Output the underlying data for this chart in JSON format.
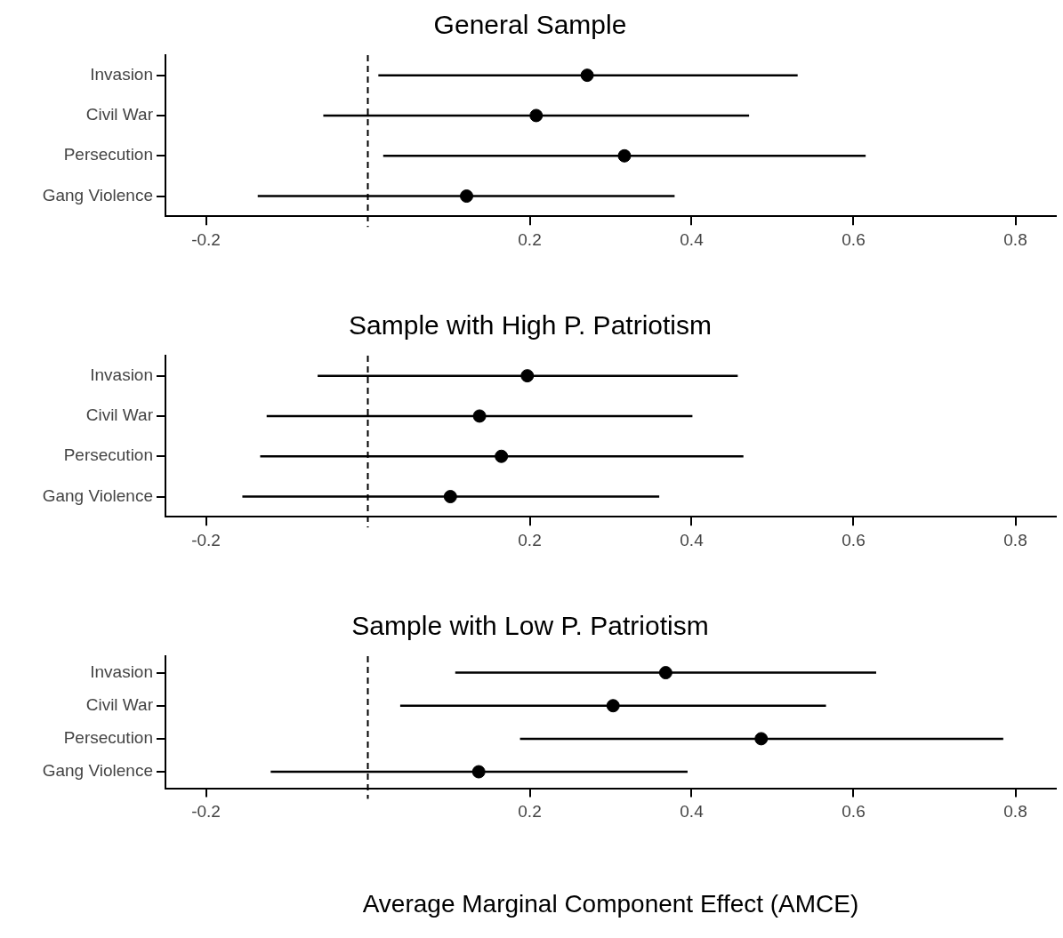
{
  "chart_data": [
    {
      "type": "scatter",
      "orientation": "horizontal",
      "title": "General Sample",
      "categories": [
        "Invasion",
        "Civil War",
        "Persecution",
        "Gang Violence"
      ],
      "values": [
        0.271,
        0.208,
        0.317,
        0.122
      ],
      "errors": [
        [
          0.013,
          0.531
        ],
        [
          -0.055,
          0.471
        ],
        [
          0.019,
          0.615
        ],
        [
          -0.136,
          0.379
        ]
      ],
      "color": "#000000",
      "marker": "circle",
      "xlim": [
        -0.25,
        0.85
      ],
      "xticks": [
        -0.2,
        0.2,
        0.4,
        0.6,
        0.8
      ],
      "ref_lines": [
        {
          "axis": "x",
          "value": 0,
          "line_style": "dashed",
          "color": "#000000"
        }
      ],
      "grid": false,
      "legend": false
    },
    {
      "type": "scatter",
      "orientation": "horizontal",
      "title": "Sample with High P. Patriotism",
      "categories": [
        "Invasion",
        "Civil War",
        "Persecution",
        "Gang Violence"
      ],
      "values": [
        0.197,
        0.138,
        0.165,
        0.102
      ],
      "errors": [
        [
          -0.062,
          0.457
        ],
        [
          -0.125,
          0.401
        ],
        [
          -0.133,
          0.464
        ],
        [
          -0.155,
          0.36
        ]
      ],
      "color": "#000000",
      "marker": "circle",
      "xlim": [
        -0.25,
        0.85
      ],
      "xticks": [
        -0.2,
        0.2,
        0.4,
        0.6,
        0.8
      ],
      "ref_lines": [
        {
          "axis": "x",
          "value": 0,
          "line_style": "dashed",
          "color": "#000000"
        }
      ],
      "grid": false,
      "legend": false
    },
    {
      "type": "scatter",
      "orientation": "horizontal",
      "title": "Sample with Low P. Patriotism",
      "xlabel": "Average Marginal Component Effect (AMCE)",
      "categories": [
        "Invasion",
        "Civil War",
        "Persecution",
        "Gang Violence"
      ],
      "values": [
        0.368,
        0.303,
        0.486,
        0.137
      ],
      "errors": [
        [
          0.108,
          0.628
        ],
        [
          0.04,
          0.566
        ],
        [
          0.188,
          0.785
        ],
        [
          -0.12,
          0.395
        ]
      ],
      "color": "#000000",
      "marker": "circle",
      "xlim": [
        -0.25,
        0.85
      ],
      "xticks": [
        -0.2,
        0.2,
        0.4,
        0.6,
        0.8
      ],
      "ref_lines": [
        {
          "axis": "x",
          "value": 0,
          "line_style": "dashed",
          "color": "#000000"
        }
      ],
      "grid": false,
      "legend": false
    }
  ]
}
